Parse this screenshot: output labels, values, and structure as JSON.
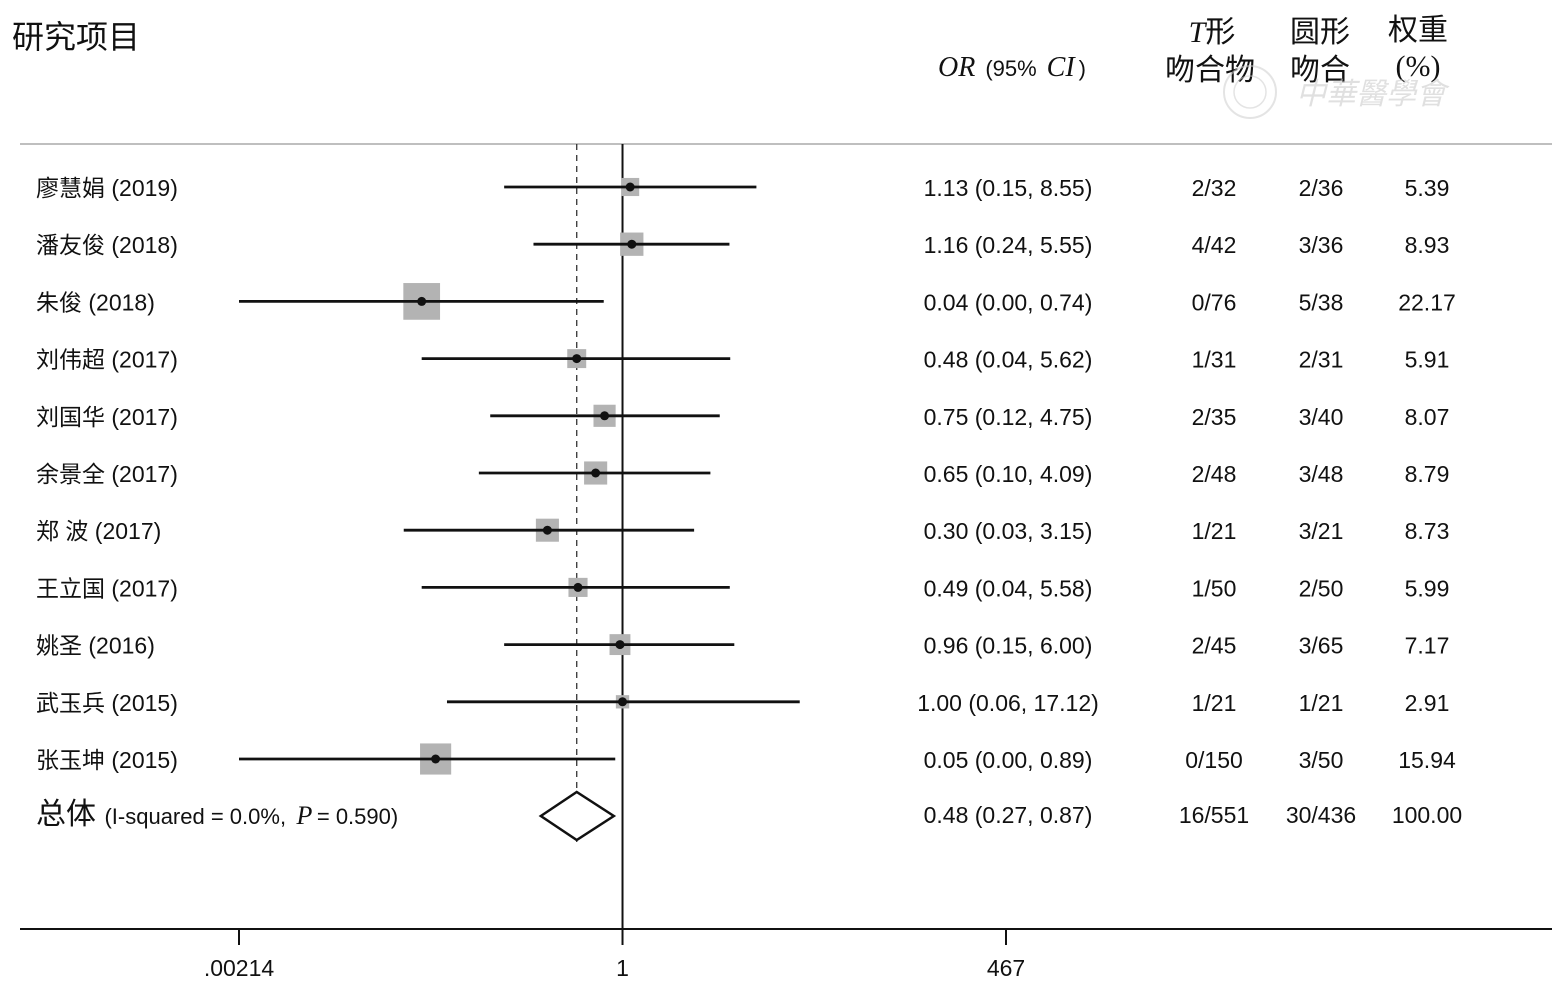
{
  "header": {
    "study_col": "研究项目",
    "or_label": "OR",
    "ci_paren_open": "(95%",
    "ci_label": "CI",
    "ci_paren_close": ")",
    "t_label_italic": "T",
    "t_label_rest": "形",
    "t_label_line2": "吻合物",
    "round_line1": "圆形",
    "round_line2": "吻合",
    "weight_line1": "权重",
    "weight_line2": "(%)"
  },
  "watermark": "中華醫學會",
  "overall": {
    "label": "总体",
    "stat_prefix": "(I-squared = 0.0%,",
    "p_label": "P",
    "stat_suffix": "= 0.590)"
  },
  "colors": {
    "ink": "#111111",
    "weight_box": "#b3b3b3",
    "grid_rule": "#bfbfbf",
    "watermark": "#d0d0d0"
  },
  "chart_data": {
    "type": "forest",
    "x_scale": "log",
    "xticks": [
      0.00214,
      1,
      467
    ],
    "xtick_labels": [
      ".00214",
      "1",
      "467"
    ],
    "null_line": 1,
    "pooled_line": 0.48,
    "studies": [
      {
        "name": "廖慧娟 (2019)",
        "or": 1.13,
        "lo": 0.15,
        "hi": 8.55,
        "ci_text": "1.13 (0.15, 8.55)",
        "t": "2/32",
        "round": "2/36",
        "weight": 5.39,
        "weight_text": "5.39"
      },
      {
        "name": "潘友俊 (2018)",
        "or": 1.16,
        "lo": 0.24,
        "hi": 5.55,
        "ci_text": "1.16 (0.24, 5.55)",
        "t": "4/42",
        "round": "3/36",
        "weight": 8.93,
        "weight_text": "8.93"
      },
      {
        "name": "朱俊 (2018)",
        "or": 0.04,
        "lo": 0.0,
        "hi": 0.74,
        "ci_text": "0.04 (0.00, 0.74)",
        "t": "0/76",
        "round": "5/38",
        "weight": 22.17,
        "weight_text": "22.17"
      },
      {
        "name": "刘伟超 (2017)",
        "or": 0.48,
        "lo": 0.04,
        "hi": 5.62,
        "ci_text": "0.48 (0.04, 5.62)",
        "t": "1/31",
        "round": "2/31",
        "weight": 5.91,
        "weight_text": "5.91"
      },
      {
        "name": "刘国华 (2017)",
        "or": 0.75,
        "lo": 0.12,
        "hi": 4.75,
        "ci_text": "0.75 (0.12, 4.75)",
        "t": "2/35",
        "round": "3/40",
        "weight": 8.07,
        "weight_text": "8.07"
      },
      {
        "name": "余景全 (2017)",
        "or": 0.65,
        "lo": 0.1,
        "hi": 4.09,
        "ci_text": "0.65 (0.10, 4.09)",
        "t": "2/48",
        "round": "3/48",
        "weight": 8.79,
        "weight_text": "8.79"
      },
      {
        "name": "郑 波 (2017)",
        "or": 0.3,
        "lo": 0.03,
        "hi": 3.15,
        "ci_text": "0.30 (0.03, 3.15)",
        "t": "1/21",
        "round": "3/21",
        "weight": 8.73,
        "weight_text": "8.73"
      },
      {
        "name": "王立国 (2017)",
        "or": 0.49,
        "lo": 0.04,
        "hi": 5.58,
        "ci_text": "0.49 (0.04, 5.58)",
        "t": "1/50",
        "round": "2/50",
        "weight": 5.99,
        "weight_text": "5.99"
      },
      {
        "name": "姚圣 (2016)",
        "or": 0.96,
        "lo": 0.15,
        "hi": 6.0,
        "ci_text": "0.96 (0.15, 6.00)",
        "t": "2/45",
        "round": "3/65",
        "weight": 7.17,
        "weight_text": "7.17"
      },
      {
        "name": "武玉兵 (2015)",
        "or": 1.0,
        "lo": 0.06,
        "hi": 17.12,
        "ci_text": "1.00 (0.06, 17.12)",
        "t": "1/21",
        "round": "1/21",
        "weight": 2.91,
        "weight_text": "2.91"
      },
      {
        "name": "张玉坤 (2015)",
        "or": 0.05,
        "lo": 0.0,
        "hi": 0.89,
        "ci_text": "0.05 (0.00, 0.89)",
        "t": "0/150",
        "round": "3/50",
        "weight": 15.94,
        "weight_text": "15.94"
      }
    ],
    "pooled": {
      "or": 0.48,
      "lo": 0.27,
      "hi": 0.87,
      "ci_text": "0.48 (0.27, 0.87)",
      "t": "16/551",
      "round": "30/436",
      "weight": 100.0,
      "weight_text": "100.00"
    }
  }
}
